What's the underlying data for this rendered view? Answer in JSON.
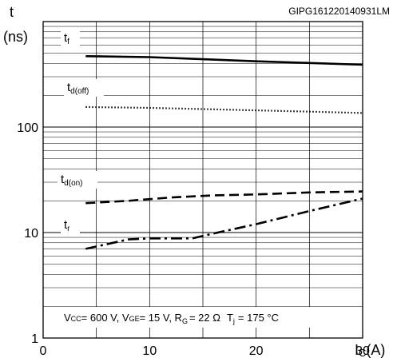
{
  "chart_data": {
    "type": "line",
    "code": "GIPG161220140931LM",
    "ylabel": "t",
    "yunit": "(ns)",
    "xlabel": "Ic(A)",
    "xlabel_main": "I",
    "xlabel_sub": "C",
    "xlabel_unit": "(A)",
    "xlim": [
      0,
      30
    ],
    "ylim": [
      1,
      1000
    ],
    "y_scale": "log",
    "grid": true,
    "x_ticks": [
      "0",
      "10",
      "20",
      "30"
    ],
    "y_ticks": [
      "1",
      "10",
      "100"
    ],
    "conditions_text": "VCC = 600 V, VGE = 15 V, RG = 22 Ω  Tj = 175 °C",
    "conditions_parts": [
      "V",
      "CC",
      "= 600 V, V",
      "GE",
      "= 15 V, R",
      "G",
      "= 22 Ω",
      "T",
      "j",
      "= 175 °C"
    ],
    "series": [
      {
        "name": "tf",
        "label_main": "t",
        "label_sub": "f",
        "style": "solid",
        "x": [
          4,
          10,
          15,
          20,
          25,
          30
        ],
        "y": [
          470,
          460,
          440,
          420,
          405,
          390
        ]
      },
      {
        "name": "td(off)",
        "label_main": "t",
        "label_sub": "d(off)",
        "style": "dotted",
        "x": [
          4,
          10,
          15,
          20,
          25,
          30
        ],
        "y": [
          155,
          152,
          148,
          144,
          140,
          136
        ]
      },
      {
        "name": "td(on)",
        "label_main": "t",
        "label_sub": "d(on)",
        "style": "dashed",
        "x": [
          4,
          8,
          12,
          16,
          20,
          25,
          30
        ],
        "y": [
          19,
          20,
          21.5,
          22.5,
          23,
          24,
          24.5
        ]
      },
      {
        "name": "tr",
        "label_main": "t",
        "label_sub": "r",
        "style": "dashdot",
        "x": [
          4,
          8,
          10,
          14,
          16,
          20,
          25,
          30
        ],
        "y": [
          7,
          8.6,
          8.8,
          8.8,
          9.8,
          12,
          16,
          21
        ]
      }
    ]
  }
}
